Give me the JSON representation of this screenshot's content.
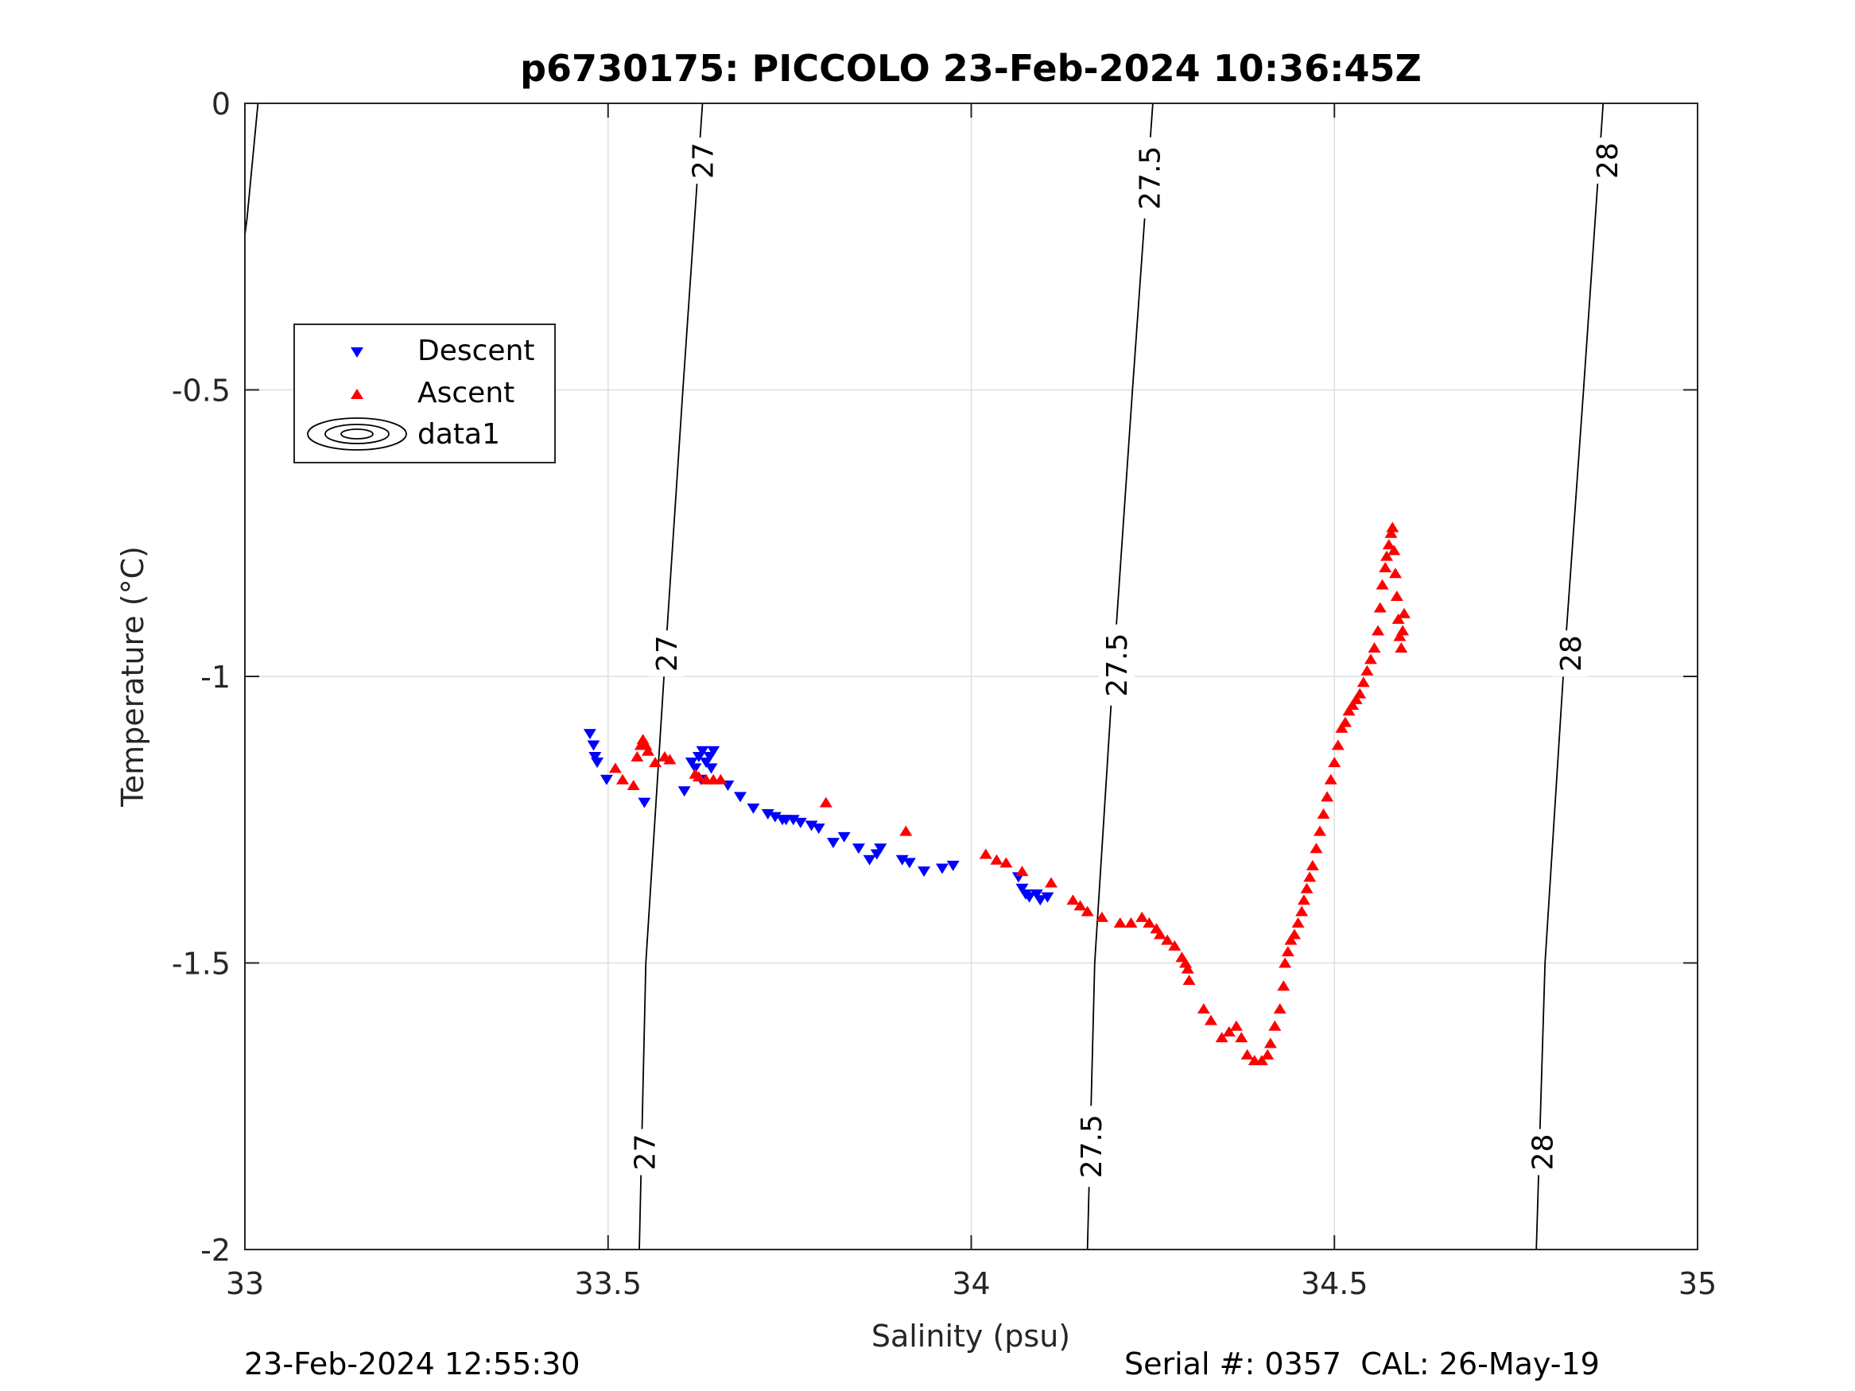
{
  "chart_data": {
    "type": "scatter",
    "title": "p6730175: PICCOLO 23-Feb-2024 10:36:45Z",
    "xlabel": "Salinity (psu)",
    "ylabel": "Temperature (°C)",
    "xlim": [
      33,
      35
    ],
    "ylim": [
      -2,
      0
    ],
    "xticks": [
      33,
      33.5,
      34,
      34.5,
      35
    ],
    "xtick_labels": [
      "33",
      "33.5",
      "34",
      "34.5",
      "35"
    ],
    "yticks": [
      0,
      -0.5,
      -1,
      -1.5,
      -2
    ],
    "ytick_labels": [
      "0",
      "-0.5",
      "-1",
      "-1.5",
      "-2"
    ],
    "grid": true,
    "legend_position": "upper-left",
    "legend": [
      "Descent",
      "Ascent",
      "data1"
    ],
    "series": [
      {
        "name": "Descent",
        "marker": "triangle-down",
        "color": "#0000ff",
        "points": [
          [
            33.475,
            -1.1
          ],
          [
            33.48,
            -1.12
          ],
          [
            33.482,
            -1.14
          ],
          [
            33.485,
            -1.15
          ],
          [
            33.498,
            -1.18
          ],
          [
            33.55,
            -1.22
          ],
          [
            33.605,
            -1.2
          ],
          [
            33.615,
            -1.15
          ],
          [
            33.62,
            -1.16
          ],
          [
            33.625,
            -1.14
          ],
          [
            33.63,
            -1.13
          ],
          [
            33.635,
            -1.15
          ],
          [
            33.64,
            -1.14
          ],
          [
            33.642,
            -1.16
          ],
          [
            33.645,
            -1.13
          ],
          [
            33.628,
            -1.18
          ],
          [
            33.665,
            -1.19
          ],
          [
            33.682,
            -1.21
          ],
          [
            33.7,
            -1.23
          ],
          [
            33.72,
            -1.24
          ],
          [
            33.73,
            -1.245
          ],
          [
            33.74,
            -1.25
          ],
          [
            33.745,
            -1.25
          ],
          [
            33.755,
            -1.25
          ],
          [
            33.765,
            -1.255
          ],
          [
            33.78,
            -1.26
          ],
          [
            33.79,
            -1.265
          ],
          [
            33.81,
            -1.29
          ],
          [
            33.825,
            -1.28
          ],
          [
            33.845,
            -1.3
          ],
          [
            33.86,
            -1.32
          ],
          [
            33.87,
            -1.31
          ],
          [
            33.875,
            -1.3
          ],
          [
            33.905,
            -1.32
          ],
          [
            33.915,
            -1.325
          ],
          [
            33.935,
            -1.34
          ],
          [
            33.96,
            -1.335
          ],
          [
            33.975,
            -1.33
          ],
          [
            34.065,
            -1.35
          ],
          [
            34.07,
            -1.37
          ],
          [
            34.075,
            -1.38
          ],
          [
            34.08,
            -1.385
          ],
          [
            34.09,
            -1.38
          ],
          [
            34.095,
            -1.39
          ],
          [
            34.105,
            -1.385
          ]
        ]
      },
      {
        "name": "Ascent",
        "marker": "triangle-up",
        "color": "#ff0000",
        "points": [
          [
            33.51,
            -1.16
          ],
          [
            33.52,
            -1.18
          ],
          [
            33.535,
            -1.19
          ],
          [
            33.54,
            -1.14
          ],
          [
            33.545,
            -1.12
          ],
          [
            33.548,
            -1.11
          ],
          [
            33.552,
            -1.12
          ],
          [
            33.555,
            -1.13
          ],
          [
            33.565,
            -1.15
          ],
          [
            33.578,
            -1.14
          ],
          [
            33.585,
            -1.145
          ],
          [
            33.62,
            -1.17
          ],
          [
            33.625,
            -1.175
          ],
          [
            33.635,
            -1.18
          ],
          [
            33.645,
            -1.18
          ],
          [
            33.655,
            -1.18
          ],
          [
            33.8,
            -1.22
          ],
          [
            33.91,
            -1.27
          ],
          [
            34.02,
            -1.31
          ],
          [
            34.035,
            -1.32
          ],
          [
            34.048,
            -1.325
          ],
          [
            34.07,
            -1.34
          ],
          [
            34.11,
            -1.36
          ],
          [
            34.14,
            -1.39
          ],
          [
            34.15,
            -1.4
          ],
          [
            34.16,
            -1.41
          ],
          [
            34.18,
            -1.42
          ],
          [
            34.205,
            -1.43
          ],
          [
            34.22,
            -1.43
          ],
          [
            34.235,
            -1.42
          ],
          [
            34.245,
            -1.43
          ],
          [
            34.255,
            -1.44
          ],
          [
            34.26,
            -1.45
          ],
          [
            34.27,
            -1.46
          ],
          [
            34.28,
            -1.47
          ],
          [
            34.29,
            -1.49
          ],
          [
            34.295,
            -1.5
          ],
          [
            34.298,
            -1.51
          ],
          [
            34.3,
            -1.53
          ],
          [
            34.32,
            -1.58
          ],
          [
            34.33,
            -1.6
          ],
          [
            34.345,
            -1.63
          ],
          [
            34.355,
            -1.62
          ],
          [
            34.365,
            -1.61
          ],
          [
            34.372,
            -1.63
          ],
          [
            34.38,
            -1.66
          ],
          [
            34.39,
            -1.67
          ],
          [
            34.4,
            -1.67
          ],
          [
            34.408,
            -1.66
          ],
          [
            34.412,
            -1.64
          ],
          [
            34.418,
            -1.61
          ],
          [
            34.425,
            -1.58
          ],
          [
            34.43,
            -1.54
          ],
          [
            34.432,
            -1.5
          ],
          [
            34.436,
            -1.48
          ],
          [
            34.44,
            -1.46
          ],
          [
            34.445,
            -1.45
          ],
          [
            34.45,
            -1.43
          ],
          [
            34.455,
            -1.41
          ],
          [
            34.458,
            -1.39
          ],
          [
            34.462,
            -1.37
          ],
          [
            34.466,
            -1.35
          ],
          [
            34.47,
            -1.33
          ],
          [
            34.475,
            -1.3
          ],
          [
            34.48,
            -1.27
          ],
          [
            34.485,
            -1.24
          ],
          [
            34.49,
            -1.21
          ],
          [
            34.495,
            -1.18
          ],
          [
            34.5,
            -1.15
          ],
          [
            34.505,
            -1.12
          ],
          [
            34.51,
            -1.09
          ],
          [
            34.515,
            -1.08
          ],
          [
            34.52,
            -1.06
          ],
          [
            34.525,
            -1.05
          ],
          [
            34.53,
            -1.04
          ],
          [
            34.535,
            -1.03
          ],
          [
            34.54,
            -1.01
          ],
          [
            34.545,
            -0.99
          ],
          [
            34.55,
            -0.97
          ],
          [
            34.555,
            -0.95
          ],
          [
            34.56,
            -0.92
          ],
          [
            34.563,
            -0.88
          ],
          [
            34.566,
            -0.84
          ],
          [
            34.57,
            -0.81
          ],
          [
            34.572,
            -0.79
          ],
          [
            34.575,
            -0.77
          ],
          [
            34.578,
            -0.75
          ],
          [
            34.58,
            -0.74
          ],
          [
            34.582,
            -0.78
          ],
          [
            34.584,
            -0.82
          ],
          [
            34.586,
            -0.86
          ],
          [
            34.588,
            -0.9
          ],
          [
            34.59,
            -0.93
          ],
          [
            34.592,
            -0.95
          ],
          [
            34.594,
            -0.92
          ],
          [
            34.596,
            -0.89
          ]
        ]
      }
    ],
    "contours": [
      {
        "level_label": "27",
        "points": [
          [
            33.018,
            0
          ],
          [
            33.003,
            -0.2
          ],
          [
            33.0,
            -0.23
          ]
        ]
      },
      {
        "level_label": "27",
        "points": [
          [
            33.63,
            0
          ],
          [
            33.603,
            -0.5
          ],
          [
            33.577,
            -1.0
          ],
          [
            33.552,
            -1.5
          ],
          [
            33.543,
            -2.0
          ]
        ]
      },
      {
        "level_label": "27.5",
        "points": [
          [
            34.25,
            0
          ],
          [
            34.222,
            -0.5
          ],
          [
            34.195,
            -1.0
          ],
          [
            34.17,
            -1.5
          ],
          [
            34.16,
            -2.0
          ]
        ]
      },
      {
        "level_label": "28",
        "points": [
          [
            34.87,
            0
          ],
          [
            34.843,
            -0.5
          ],
          [
            34.815,
            -1.0
          ],
          [
            34.79,
            -1.5
          ],
          [
            34.778,
            -2.0
          ]
        ]
      }
    ],
    "contour_labels": [
      {
        "text": "27",
        "x": 33.63,
        "y": -0.1
      },
      {
        "text": "27",
        "x": 33.58,
        "y": -0.96
      },
      {
        "text": "27",
        "x": 33.55,
        "y": -1.83
      },
      {
        "text": "27.5",
        "x": 34.245,
        "y": -0.13
      },
      {
        "text": "27.5",
        "x": 34.2,
        "y": -0.98
      },
      {
        "text": "27.5",
        "x": 34.165,
        "y": -1.82
      },
      {
        "text": "28",
        "x": 34.875,
        "y": -0.1
      },
      {
        "text": "28",
        "x": 34.825,
        "y": -0.96
      },
      {
        "text": "28",
        "x": 34.786,
        "y": -1.83
      }
    ]
  },
  "footer": {
    "left": "23-Feb-2024 12:55:30",
    "right": "Serial #: 0357  CAL: 26-May-19"
  }
}
